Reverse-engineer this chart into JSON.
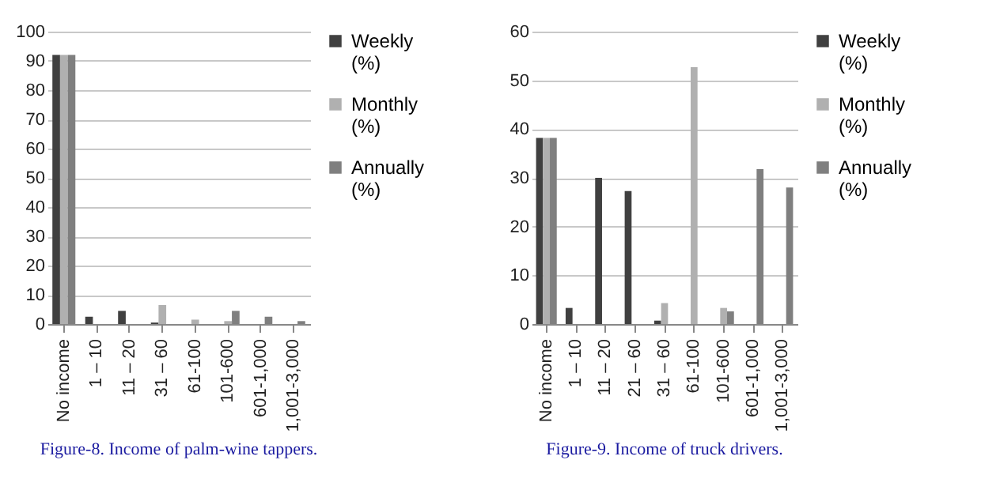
{
  "chart_data": [
    {
      "type": "bar",
      "title": "Figure-8. Income of palm-wine tappers.",
      "categories": [
        "No income",
        "1 – 10",
        "11 – 20",
        "31 – 60",
        "61-100",
        "101-600",
        "601-1,000",
        "1,001-3,000"
      ],
      "series": [
        {
          "name": "Weekly (%)",
          "color": "#404040",
          "values": [
            92,
            2.5,
            4.5,
            0.5,
            null,
            null,
            null,
            null
          ]
        },
        {
          "name": "Monthly (%)",
          "color": "#b0b0b0",
          "values": [
            92,
            null,
            null,
            6.5,
            1.5,
            1,
            null,
            null
          ]
        },
        {
          "name": "Annually (%)",
          "color": "#7f7f7f",
          "values": [
            92,
            null,
            null,
            null,
            null,
            4.5,
            2.5,
            1
          ]
        }
      ],
      "ylim": [
        0,
        100
      ],
      "yticks": [
        0,
        10,
        20,
        30,
        40,
        50,
        60,
        70,
        80,
        90,
        100
      ],
      "grid": "y",
      "legend": "right"
    },
    {
      "type": "bar",
      "title": "Figure-9. Income of truck drivers.",
      "categories": [
        "No income",
        "1 – 10",
        "11 – 20",
        "21 – 60",
        "31 – 60",
        "61-100",
        "101-600",
        "601-1,000",
        "1,001-3,000"
      ],
      "series": [
        {
          "name": "Weekly (%)",
          "color": "#404040",
          "values": [
            38.2,
            3.3,
            30,
            27.3,
            0.7,
            null,
            null,
            null,
            null
          ]
        },
        {
          "name": "Monthly (%)",
          "color": "#b0b0b0",
          "values": [
            38.2,
            null,
            null,
            null,
            4.3,
            52.7,
            3.3,
            null,
            null
          ]
        },
        {
          "name": "Annually (%)",
          "color": "#7f7f7f",
          "values": [
            38.2,
            null,
            null,
            null,
            null,
            null,
            2.6,
            31.8,
            28
          ]
        }
      ],
      "ylim": [
        0,
        60
      ],
      "yticks": [
        0,
        10,
        20,
        30,
        40,
        50,
        60
      ],
      "grid": "y",
      "legend": "right"
    }
  ]
}
